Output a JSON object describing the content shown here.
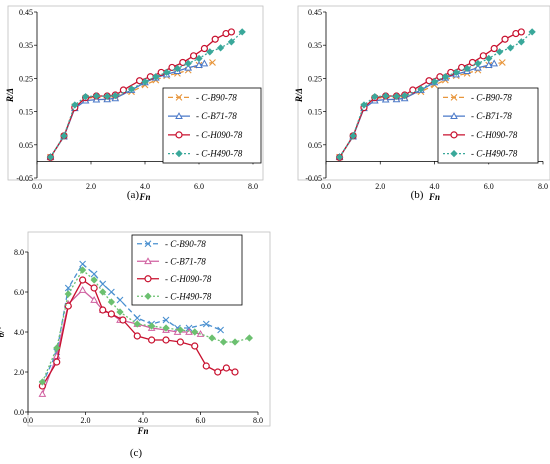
{
  "chart_data": [
    {
      "type": "line",
      "caption": "(a)",
      "xlabel": "Fn",
      "ylabel": "R/Δ",
      "xlim": [
        0,
        8
      ],
      "ylim": [
        -0.05,
        0.45
      ],
      "xticks": [
        "0.0",
        "2.0",
        "4.0",
        "6.0",
        "8.0"
      ],
      "yticks": [
        "-0.05",
        "0.05",
        "0.15",
        "0.25",
        "0.35",
        "0.45"
      ],
      "grid": false,
      "legend": "bottom-right",
      "series": [
        {
          "name": "C-B90-78",
          "color": "#e8963c",
          "dash": "5,3",
          "marker": "x",
          "x": [
            0.5,
            1.0,
            1.4,
            1.8,
            2.2,
            2.6,
            2.9,
            3.5,
            4.0,
            4.4,
            4.8,
            5.2,
            5.6,
            6.0,
            6.5
          ],
          "y": [
            0.013,
            0.075,
            0.165,
            0.19,
            0.193,
            0.192,
            0.195,
            0.21,
            0.23,
            0.245,
            0.258,
            0.265,
            0.275,
            0.29,
            0.298
          ]
        },
        {
          "name": "C-B71-78",
          "color": "#4a78c8",
          "dash": "",
          "marker": "triangle",
          "x": [
            0.5,
            1.0,
            1.4,
            1.8,
            2.2,
            2.6,
            2.9,
            3.5,
            4.0,
            4.4,
            4.8,
            5.2,
            5.6,
            6.0,
            6.2
          ],
          "y": [
            0.013,
            0.075,
            0.16,
            0.183,
            0.186,
            0.187,
            0.19,
            0.215,
            0.238,
            0.252,
            0.262,
            0.272,
            0.282,
            0.29,
            0.295
          ]
        },
        {
          "name": "C-H090-78",
          "color": "#c8102e",
          "dash": "",
          "marker": "circle",
          "x": [
            0.5,
            1.0,
            1.4,
            1.8,
            2.2,
            2.6,
            2.9,
            3.2,
            3.8,
            4.2,
            4.6,
            5.0,
            5.4,
            5.8,
            6.2,
            6.6,
            7.0,
            7.2
          ],
          "y": [
            0.012,
            0.077,
            0.162,
            0.192,
            0.197,
            0.197,
            0.2,
            0.215,
            0.243,
            0.255,
            0.268,
            0.283,
            0.298,
            0.318,
            0.34,
            0.368,
            0.385,
            0.39
          ]
        },
        {
          "name": "C-H490-78",
          "color": "#3aa89a",
          "dash": "2,2",
          "marker": "diamond",
          "x": [
            0.5,
            1.0,
            1.4,
            1.8,
            2.2,
            2.6,
            2.9,
            3.5,
            4.0,
            4.4,
            4.8,
            5.2,
            5.6,
            6.0,
            6.4,
            6.8,
            7.2,
            7.6
          ],
          "y": [
            0.013,
            0.077,
            0.17,
            0.195,
            0.197,
            0.196,
            0.198,
            0.218,
            0.24,
            0.255,
            0.268,
            0.28,
            0.295,
            0.31,
            0.33,
            0.342,
            0.36,
            0.39
          ]
        }
      ]
    },
    {
      "type": "line",
      "caption": "(b)",
      "xlabel": "Fn",
      "ylabel": "R/Δ",
      "xlim": [
        0,
        8
      ],
      "ylim": [
        -0.05,
        0.45
      ],
      "xticks": [
        "0.0",
        "2.0",
        "4.0",
        "6.0",
        "8.0"
      ],
      "yticks": [
        "-0.05",
        "0.05",
        "0.15",
        "0.25",
        "0.35",
        "0.45"
      ],
      "grid": false,
      "legend": "bottom-right",
      "series": [
        {
          "name": "C-B90-78",
          "color": "#e8963c",
          "dash": "5,3",
          "marker": "x",
          "x": [
            0.5,
            1.0,
            1.4,
            1.8,
            2.2,
            2.6,
            2.9,
            3.5,
            4.0,
            4.4,
            4.8,
            5.2,
            5.6,
            6.0,
            6.5
          ],
          "y": [
            0.013,
            0.075,
            0.165,
            0.19,
            0.193,
            0.192,
            0.195,
            0.21,
            0.23,
            0.245,
            0.258,
            0.265,
            0.275,
            0.29,
            0.298
          ]
        },
        {
          "name": "C-B71-78",
          "color": "#4a78c8",
          "dash": "",
          "marker": "triangle",
          "x": [
            0.5,
            1.0,
            1.4,
            1.8,
            2.2,
            2.6,
            2.9,
            3.5,
            4.0,
            4.4,
            4.8,
            5.2,
            5.6,
            6.0,
            6.2
          ],
          "y": [
            0.013,
            0.075,
            0.16,
            0.183,
            0.186,
            0.187,
            0.19,
            0.215,
            0.238,
            0.252,
            0.262,
            0.272,
            0.282,
            0.29,
            0.295
          ]
        },
        {
          "name": "C-H090-78",
          "color": "#c8102e",
          "dash": "",
          "marker": "circle",
          "x": [
            0.5,
            1.0,
            1.4,
            1.8,
            2.2,
            2.6,
            2.9,
            3.2,
            3.8,
            4.2,
            4.6,
            5.0,
            5.4,
            5.8,
            6.2,
            6.6,
            7.0,
            7.2
          ],
          "y": [
            0.012,
            0.077,
            0.162,
            0.192,
            0.197,
            0.197,
            0.2,
            0.215,
            0.243,
            0.255,
            0.268,
            0.283,
            0.298,
            0.318,
            0.34,
            0.368,
            0.385,
            0.39
          ]
        },
        {
          "name": "C-H490-78",
          "color": "#3aa89a",
          "dash": "2,2",
          "marker": "diamond",
          "x": [
            0.5,
            1.0,
            1.4,
            1.8,
            2.2,
            2.6,
            2.9,
            3.5,
            4.0,
            4.4,
            4.8,
            5.2,
            5.6,
            6.0,
            6.4,
            6.8,
            7.2,
            7.6
          ],
          "y": [
            0.013,
            0.077,
            0.17,
            0.195,
            0.197,
            0.196,
            0.198,
            0.218,
            0.24,
            0.255,
            0.268,
            0.28,
            0.295,
            0.31,
            0.33,
            0.342,
            0.36,
            0.39
          ]
        }
      ]
    },
    {
      "type": "line",
      "caption": "(c)",
      "xlabel": "Fn",
      "ylabel": "θ/°",
      "xlim": [
        0,
        8
      ],
      "ylim": [
        0,
        8
      ],
      "xticks": [
        "0.0",
        "2.0",
        "4.0",
        "6.0",
        "8.0"
      ],
      "yticks": [
        "0.0",
        "2.0",
        "4.0",
        "6.0",
        "8.0"
      ],
      "grid": false,
      "legend": "top-right",
      "series": [
        {
          "name": "C-B90-78",
          "color": "#4a90d0",
          "dash": "5,3",
          "marker": "x",
          "x": [
            0.5,
            1.0,
            1.4,
            1.9,
            2.3,
            2.6,
            2.9,
            3.2,
            3.8,
            4.3,
            4.8,
            5.2,
            5.6,
            6.2,
            6.7
          ],
          "y": [
            1.4,
            3.0,
            6.2,
            7.4,
            6.9,
            6.4,
            6.0,
            5.6,
            4.7,
            4.4,
            4.6,
            4.2,
            4.2,
            4.4,
            4.1
          ]
        },
        {
          "name": "C-B71-78",
          "color": "#d060a0",
          "dash": "",
          "marker": "triangle",
          "x": [
            0.5,
            1.0,
            1.4,
            1.9,
            2.3,
            2.6,
            2.9,
            3.2,
            3.8,
            4.3,
            4.8,
            5.2,
            5.6,
            6.0
          ],
          "y": [
            0.9,
            2.8,
            5.4,
            6.1,
            5.6,
            5.1,
            4.9,
            4.6,
            4.4,
            4.2,
            4.1,
            4.0,
            4.0,
            3.9
          ]
        },
        {
          "name": "C-H090-78",
          "color": "#c8102e",
          "dash": "",
          "marker": "circle",
          "x": [
            0.5,
            1.0,
            1.4,
            1.9,
            2.3,
            2.6,
            2.9,
            3.3,
            3.8,
            4.3,
            4.8,
            5.3,
            5.8,
            6.2,
            6.6,
            6.9,
            7.2
          ],
          "y": [
            1.3,
            2.5,
            5.3,
            6.6,
            6.2,
            5.1,
            4.9,
            4.6,
            3.8,
            3.6,
            3.6,
            3.5,
            3.3,
            2.3,
            2.0,
            2.2,
            2.0
          ]
        },
        {
          "name": "C-H490-78",
          "color": "#6cc070",
          "dash": "2,2",
          "marker": "diamond",
          "x": [
            0.5,
            1.0,
            1.4,
            1.9,
            2.3,
            2.6,
            2.9,
            3.2,
            3.8,
            4.3,
            4.8,
            5.3,
            5.8,
            6.4,
            6.8,
            7.2,
            7.7
          ],
          "y": [
            1.5,
            3.2,
            5.9,
            7.1,
            6.6,
            6.0,
            5.5,
            5.0,
            4.4,
            4.3,
            4.2,
            4.1,
            4.0,
            3.7,
            3.5,
            3.5,
            3.7
          ]
        }
      ]
    }
  ]
}
